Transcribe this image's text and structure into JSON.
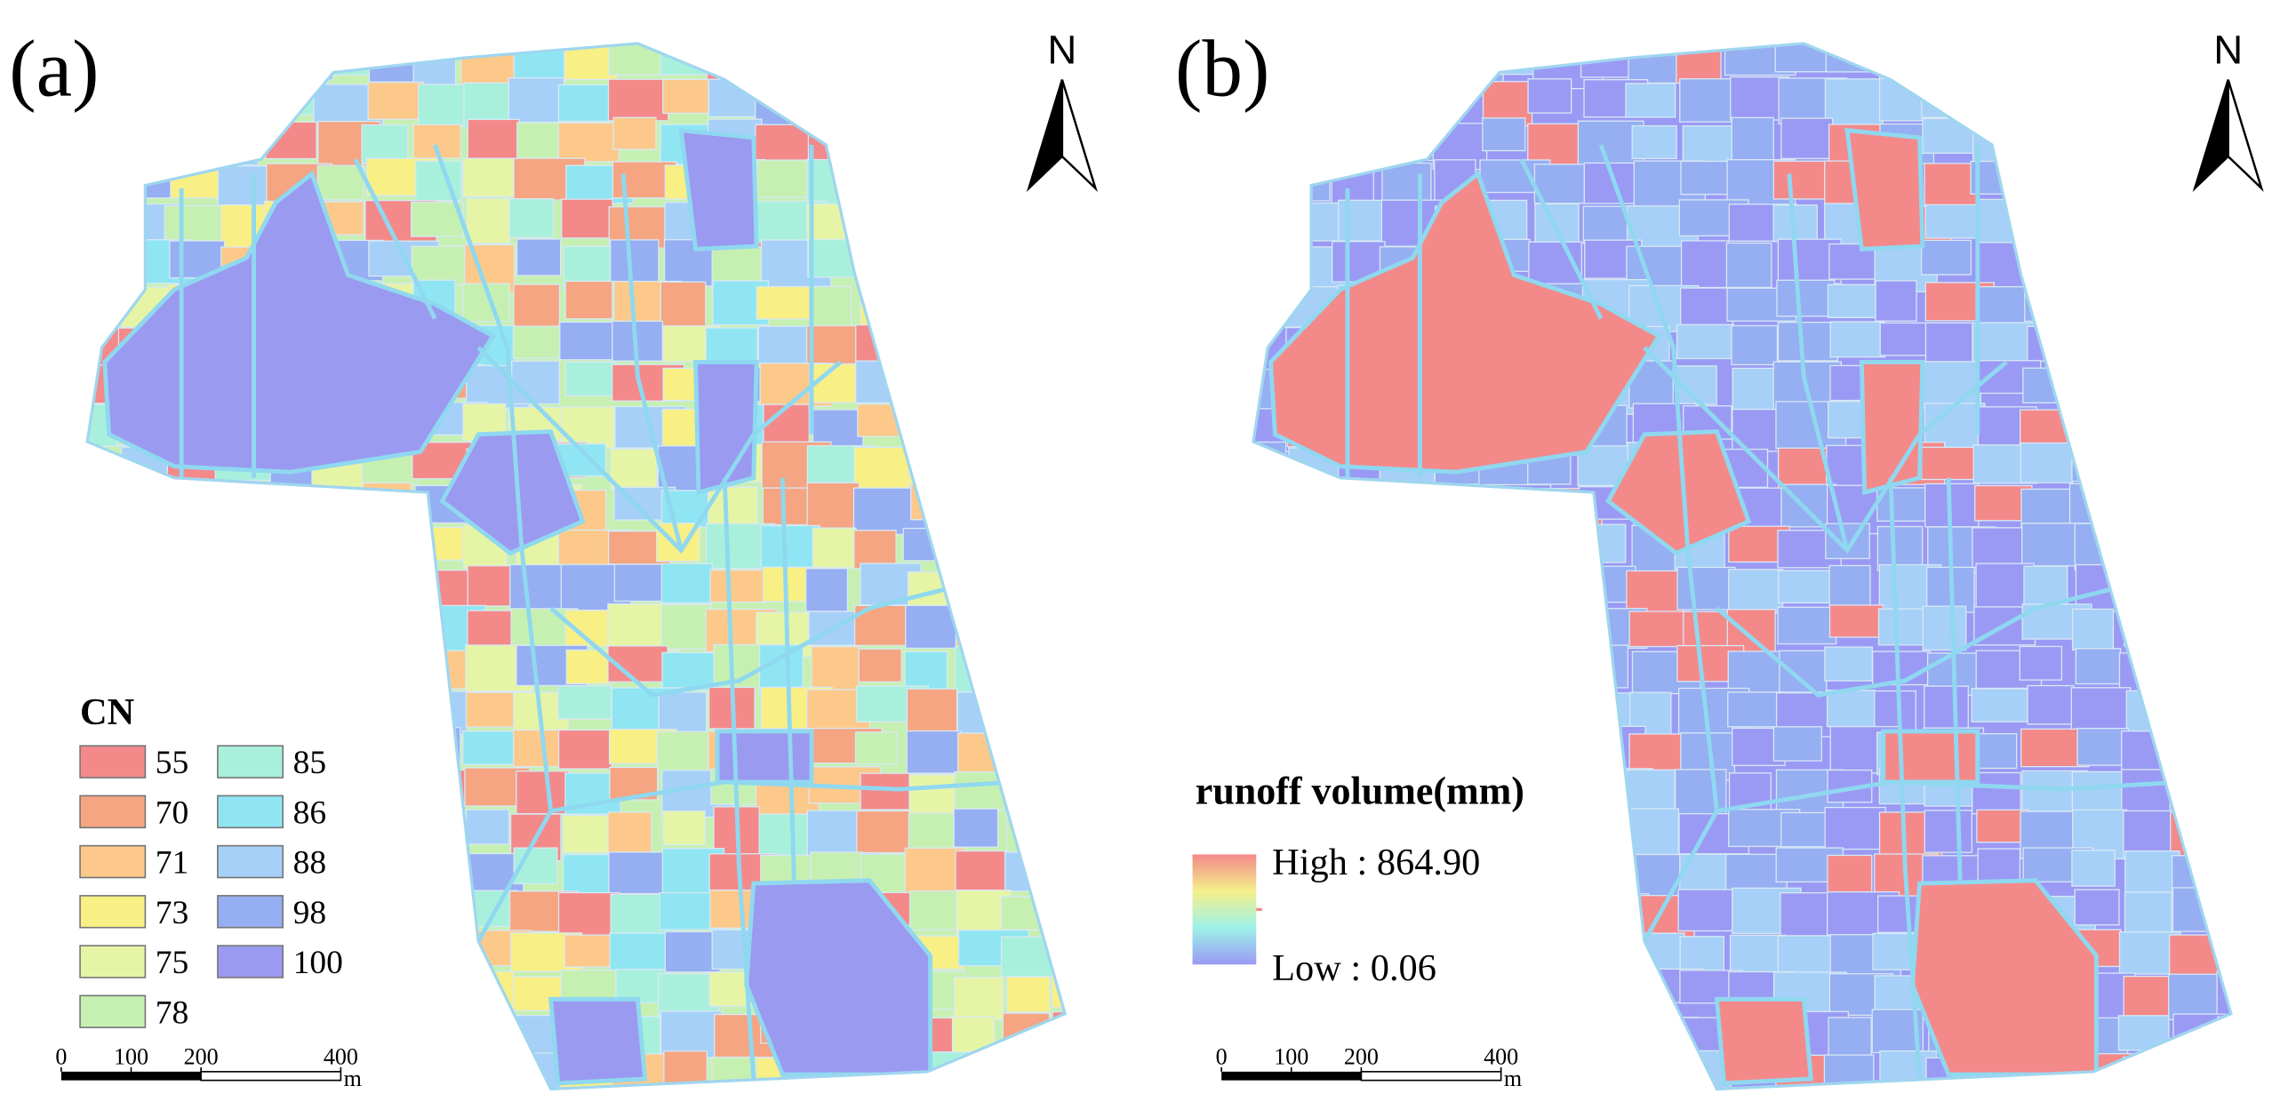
{
  "panels": [
    {
      "label": "(a)",
      "north": "N",
      "legend": {
        "title": "CN",
        "items": [
          {
            "value": 55,
            "color": "#f4898a"
          },
          {
            "value": 70,
            "color": "#f5a582"
          },
          {
            "value": 71,
            "color": "#fcc98a"
          },
          {
            "value": 73,
            "color": "#f8ef85"
          },
          {
            "value": 75,
            "color": "#e6f5a5"
          },
          {
            "value": 78,
            "color": "#c6f0b2"
          },
          {
            "value": 85,
            "color": "#a8f0dc"
          },
          {
            "value": 86,
            "color": "#8fe6f2"
          },
          {
            "value": 88,
            "color": "#a6d0f7"
          },
          {
            "value": 98,
            "color": "#96aef2"
          },
          {
            "value": 100,
            "color": "#9a9af0"
          }
        ]
      },
      "scale_bar": {
        "ticks": [
          0,
          100,
          200,
          400
        ],
        "unit": "m"
      }
    },
    {
      "label": "(b)",
      "north": "N",
      "legend": {
        "title": "runoff volume(mm)",
        "high": "High : 864.90",
        "low": "Low : 0.06",
        "colors": [
          "#f4898a",
          "#f5ef8a",
          "#9ef2e8",
          "#9a9af5"
        ]
      },
      "scale_bar": {
        "ticks": [
          0,
          100,
          200,
          400
        ],
        "unit": "m"
      }
    }
  ]
}
